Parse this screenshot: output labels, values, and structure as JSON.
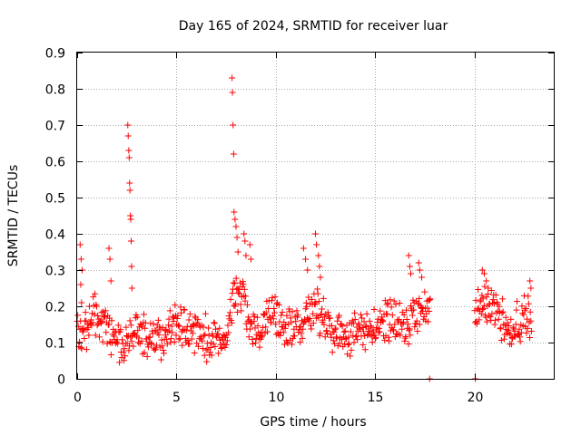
{
  "chart_data": {
    "type": "scatter",
    "title": "Day 165 of 2024, SRMTID for receiver luar",
    "xlabel": "GPS time / hours",
    "ylabel": "SRMTID / TECUs",
    "xlim": [
      0,
      24
    ],
    "ylim": [
      0,
      0.9
    ],
    "xticks": [
      0,
      5,
      10,
      15,
      20
    ],
    "xtick_labels": [
      "0",
      "5",
      "10",
      "15",
      "20"
    ],
    "yticks": [
      0,
      0.1,
      0.2,
      0.3,
      0.4,
      0.5,
      0.6,
      0.7,
      0.8,
      0.9
    ],
    "ytick_labels": [
      "0",
      "0.1",
      "0.2",
      "0.3",
      "0.4",
      "0.5",
      "0.6",
      "0.7",
      "0.8",
      "0.9"
    ],
    "grid": true,
    "marker": "+",
    "series_color": "#ff0000",
    "trend": [
      [
        0.0,
        0.13
      ],
      [
        0.3,
        0.11
      ],
      [
        0.6,
        0.14
      ],
      [
        0.9,
        0.18
      ],
      [
        1.2,
        0.15
      ],
      [
        1.5,
        0.13
      ],
      [
        1.8,
        0.12
      ],
      [
        2.1,
        0.11
      ],
      [
        2.4,
        0.09
      ],
      [
        2.7,
        0.12
      ],
      [
        3.0,
        0.14
      ],
      [
        3.3,
        0.12
      ],
      [
        3.6,
        0.1
      ],
      [
        3.9,
        0.11
      ],
      [
        4.2,
        0.1
      ],
      [
        4.5,
        0.12
      ],
      [
        4.8,
        0.14
      ],
      [
        5.1,
        0.15
      ],
      [
        5.4,
        0.14
      ],
      [
        5.7,
        0.13
      ],
      [
        6.0,
        0.14
      ],
      [
        6.3,
        0.12
      ],
      [
        6.6,
        0.11
      ],
      [
        6.9,
        0.1
      ],
      [
        7.2,
        0.11
      ],
      [
        7.5,
        0.1
      ],
      [
        7.8,
        0.2
      ],
      [
        8.1,
        0.24
      ],
      [
        8.4,
        0.21
      ],
      [
        8.7,
        0.15
      ],
      [
        9.0,
        0.12
      ],
      [
        9.3,
        0.14
      ],
      [
        9.6,
        0.17
      ],
      [
        9.9,
        0.18
      ],
      [
        10.2,
        0.16
      ],
      [
        10.5,
        0.14
      ],
      [
        10.8,
        0.12
      ],
      [
        11.1,
        0.15
      ],
      [
        11.4,
        0.17
      ],
      [
        11.7,
        0.19
      ],
      [
        12.0,
        0.2
      ],
      [
        12.3,
        0.17
      ],
      [
        12.6,
        0.14
      ],
      [
        12.9,
        0.13
      ],
      [
        13.2,
        0.12
      ],
      [
        13.5,
        0.13
      ],
      [
        13.8,
        0.12
      ],
      [
        14.1,
        0.12
      ],
      [
        14.4,
        0.13
      ],
      [
        14.7,
        0.14
      ],
      [
        15.0,
        0.14
      ],
      [
        15.3,
        0.15
      ],
      [
        15.6,
        0.16
      ],
      [
        15.9,
        0.17
      ],
      [
        16.2,
        0.16
      ],
      [
        16.5,
        0.14
      ],
      [
        16.8,
        0.15
      ],
      [
        17.1,
        0.17
      ],
      [
        17.4,
        0.19
      ],
      [
        17.6,
        0.18
      ],
      [
        20.1,
        0.18
      ],
      [
        20.4,
        0.2
      ],
      [
        20.7,
        0.22
      ],
      [
        21.0,
        0.19
      ],
      [
        21.3,
        0.17
      ],
      [
        21.6,
        0.16
      ],
      [
        21.9,
        0.14
      ],
      [
        22.2,
        0.15
      ],
      [
        22.5,
        0.17
      ],
      [
        22.8,
        0.16
      ]
    ],
    "spikes": [
      [
        0.15,
        0.37
      ],
      [
        0.2,
        0.33
      ],
      [
        0.25,
        0.3
      ],
      [
        0.18,
        0.26
      ],
      [
        0.22,
        0.21
      ],
      [
        1.6,
        0.36
      ],
      [
        1.65,
        0.33
      ],
      [
        1.7,
        0.27
      ],
      [
        2.55,
        0.7
      ],
      [
        2.57,
        0.67
      ],
      [
        2.6,
        0.63
      ],
      [
        2.62,
        0.61
      ],
      [
        2.64,
        0.54
      ],
      [
        2.66,
        0.52
      ],
      [
        2.68,
        0.45
      ],
      [
        2.7,
        0.44
      ],
      [
        2.72,
        0.38
      ],
      [
        2.74,
        0.31
      ],
      [
        2.76,
        0.25
      ],
      [
        7.8,
        0.83
      ],
      [
        7.82,
        0.79
      ],
      [
        7.85,
        0.7
      ],
      [
        7.88,
        0.62
      ],
      [
        7.9,
        0.46
      ],
      [
        7.95,
        0.44
      ],
      [
        8.0,
        0.42
      ],
      [
        8.05,
        0.39
      ],
      [
        8.1,
        0.35
      ],
      [
        8.4,
        0.4
      ],
      [
        8.45,
        0.38
      ],
      [
        8.5,
        0.34
      ],
      [
        8.7,
        0.37
      ],
      [
        8.75,
        0.33
      ],
      [
        11.4,
        0.36
      ],
      [
        11.5,
        0.33
      ],
      [
        11.6,
        0.3
      ],
      [
        12.0,
        0.4
      ],
      [
        12.05,
        0.37
      ],
      [
        12.15,
        0.34
      ],
      [
        12.2,
        0.31
      ],
      [
        12.25,
        0.28
      ],
      [
        16.7,
        0.34
      ],
      [
        16.75,
        0.31
      ],
      [
        16.8,
        0.29
      ],
      [
        17.2,
        0.32
      ],
      [
        17.25,
        0.3
      ],
      [
        17.35,
        0.28
      ],
      [
        20.4,
        0.3
      ],
      [
        20.5,
        0.29
      ],
      [
        20.6,
        0.27
      ],
      [
        20.7,
        0.25
      ],
      [
        22.8,
        0.27
      ],
      [
        22.85,
        0.25
      ]
    ],
    "zero_points": [
      [
        17.75,
        0.0
      ],
      [
        20.05,
        0.0
      ]
    ],
    "data_gap": [
      17.8,
      20.0
    ]
  }
}
